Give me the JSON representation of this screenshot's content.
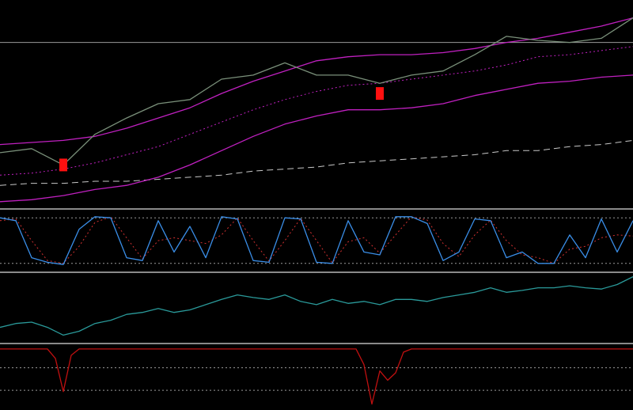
{
  "chart_data": [
    {
      "type": "line",
      "ylim": [
        0,
        100
      ],
      "levels": [
        80
      ],
      "level_style": "solid",
      "categories": [
        null,
        null,
        null,
        null,
        null,
        null,
        null,
        null,
        null,
        null,
        null,
        null,
        null,
        null,
        null,
        null,
        null,
        null,
        null,
        null,
        null
      ],
      "series": [
        {
          "color": "#c8c8c8",
          "style": "dashed",
          "values": [
            10,
            11,
            11,
            12,
            12,
            13,
            14,
            15,
            17,
            18,
            19,
            21,
            22,
            23,
            24,
            25,
            27,
            27,
            29,
            30,
            32
          ]
        },
        {
          "color": "#c020c0",
          "style": "line",
          "values": [
            2,
            3,
            5,
            8,
            10,
            14,
            20,
            27,
            34,
            40,
            44,
            47,
            47,
            48,
            50,
            54,
            57,
            60,
            61,
            63,
            64
          ]
        },
        {
          "color": "#c020c0",
          "style": "dotted",
          "values": [
            15,
            16,
            18,
            21,
            25,
            29,
            35,
            41,
            47,
            52,
            56,
            59,
            60,
            62,
            64,
            66,
            69,
            73,
            74,
            76,
            78
          ]
        },
        {
          "color": "#c020c0",
          "style": "line",
          "values": [
            30,
            31,
            32,
            34,
            38,
            43,
            48,
            55,
            61,
            66,
            71,
            73,
            74,
            74,
            75,
            77,
            80,
            82,
            85,
            88,
            92
          ]
        },
        {
          "color": "#7a907a",
          "style": "line",
          "values": [
            26,
            28,
            20,
            35,
            43,
            50,
            52,
            62,
            64,
            70,
            64,
            64,
            60,
            64,
            66,
            74,
            83,
            81,
            80,
            82,
            92
          ]
        },
        {
          "color": "#ff1010",
          "style": "marker",
          "values": [
            null,
            null,
            20,
            null,
            null,
            null,
            null,
            null,
            null,
            null,
            null,
            null,
            55,
            null,
            null,
            null,
            null,
            null,
            null,
            null,
            null
          ]
        }
      ]
    },
    {
      "type": "line",
      "ylim": [
        0,
        100
      ],
      "levels": [
        90,
        10
      ],
      "level_style": "dotted",
      "categories": [
        null,
        null,
        null,
        null,
        null,
        null,
        null,
        null,
        null,
        null,
        null,
        null,
        null,
        null,
        null,
        null,
        null,
        null,
        null,
        null,
        null,
        null,
        null,
        null,
        null,
        null,
        null,
        null,
        null,
        null,
        null,
        null,
        null,
        null,
        null,
        null,
        null,
        null,
        null,
        null,
        null
      ],
      "series": [
        {
          "color": "#d03030",
          "style": "dotted",
          "values": [
            85,
            88,
            50,
            15,
            10,
            40,
            82,
            92,
            55,
            18,
            50,
            55,
            50,
            45,
            60,
            90,
            50,
            14,
            50,
            89,
            50,
            11,
            48,
            55,
            28,
            60,
            92,
            86,
            45,
            22,
            60,
            86,
            50,
            25,
            20,
            10,
            35,
            40,
            55,
            60,
            58
          ]
        },
        {
          "color": "#3a8ee8",
          "style": "line",
          "values": [
            90,
            85,
            20,
            12,
            8,
            70,
            92,
            90,
            20,
            15,
            85,
            30,
            75,
            20,
            92,
            88,
            15,
            12,
            90,
            88,
            12,
            10,
            85,
            30,
            25,
            92,
            92,
            80,
            15,
            30,
            88,
            85,
            20,
            30,
            10,
            10,
            60,
            20,
            88,
            30,
            85
          ]
        }
      ]
    },
    {
      "type": "line",
      "ylim": [
        0,
        100
      ],
      "levels": [],
      "level_style": "dotted",
      "categories": [
        null,
        null,
        null,
        null,
        null,
        null,
        null,
        null,
        null,
        null,
        null,
        null,
        null,
        null,
        null,
        null,
        null,
        null,
        null,
        null,
        null,
        null,
        null,
        null,
        null,
        null,
        null,
        null,
        null,
        null,
        null,
        null,
        null,
        null,
        null,
        null,
        null,
        null,
        null,
        null,
        null
      ],
      "series": [
        {
          "color": "#2a9a9a",
          "style": "line",
          "values": [
            20,
            26,
            28,
            20,
            8,
            14,
            26,
            31,
            40,
            43,
            49,
            43,
            47,
            55,
            63,
            70,
            66,
            63,
            70,
            60,
            55,
            63,
            57,
            60,
            55,
            63,
            63,
            60,
            66,
            70,
            74,
            81,
            74,
            77,
            81,
            81,
            84,
            81,
            79,
            86,
            98
          ]
        }
      ]
    },
    {
      "type": "line",
      "ylim": [
        0,
        100
      ],
      "levels": [
        65,
        29
      ],
      "level_style": "dotted",
      "categories": [
        null,
        null,
        null,
        null,
        null,
        null,
        null,
        null,
        null,
        null,
        null,
        null,
        null,
        null,
        null,
        null,
        null,
        null,
        null,
        null,
        null,
        null,
        null,
        null,
        null,
        null,
        null,
        null,
        null,
        null,
        null,
        null,
        null,
        null,
        null,
        null,
        null,
        null,
        null,
        null,
        null,
        null,
        null,
        null,
        null,
        null,
        null,
        null,
        null,
        null,
        null,
        null,
        null,
        null,
        null,
        null,
        null,
        null,
        null,
        null,
        null,
        null,
        null,
        null,
        null,
        null,
        null,
        null,
        null,
        null,
        null,
        null,
        null,
        null,
        null,
        null,
        null,
        null,
        null,
        null,
        null
      ],
      "series": [
        {
          "color": "#c01010",
          "style": "line",
          "values": [
            95,
            95,
            95,
            95,
            95,
            95,
            95,
            80,
            27,
            85,
            95,
            95,
            95,
            95,
            95,
            95,
            95,
            95,
            95,
            95,
            95,
            95,
            95,
            95,
            95,
            95,
            95,
            95,
            95,
            95,
            95,
            95,
            95,
            95,
            95,
            95,
            95,
            95,
            95,
            95,
            95,
            95,
            95,
            95,
            95,
            95,
            70,
            7,
            60,
            45,
            57,
            90,
            95,
            95,
            95,
            95,
            95,
            95,
            95,
            95,
            95,
            95,
            95,
            95,
            95,
            95,
            95,
            95,
            95,
            95,
            95,
            95,
            95,
            95,
            95,
            95,
            95,
            95,
            95,
            95,
            95
          ]
        }
      ]
    }
  ]
}
